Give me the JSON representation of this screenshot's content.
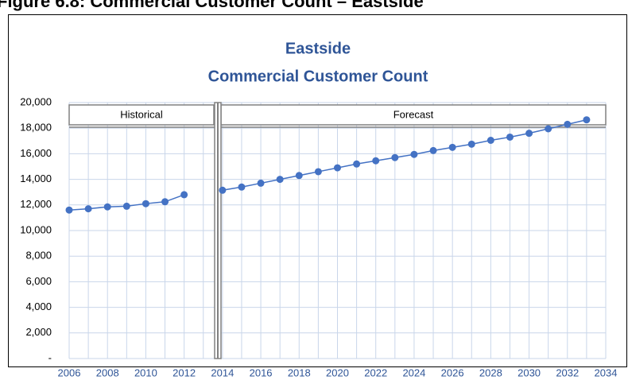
{
  "chart_data": {
    "type": "line",
    "figure_caption": "Figure 6.8:  Commercial Customer Count – Eastside",
    "title": "Eastside",
    "subtitle": "Commercial Customer Count",
    "regions": [
      "Historical",
      "Forecast"
    ],
    "x": [
      2006,
      2007,
      2008,
      2009,
      2010,
      2011,
      2012,
      2013,
      2014,
      2015,
      2016,
      2017,
      2018,
      2019,
      2020,
      2021,
      2022,
      2023,
      2024,
      2025,
      2026,
      2027,
      2028,
      2029,
      2030,
      2031,
      2032,
      2033
    ],
    "series": [
      {
        "color": "#4472c4",
        "values": [
          11600,
          11700,
          11850,
          11900,
          12100,
          12250,
          12800,
          null,
          13150,
          13400,
          13700,
          14000,
          14300,
          14600,
          14900,
          15200,
          15450,
          15700,
          15950,
          16250,
          16500,
          16750,
          17050,
          17300,
          17600,
          17950,
          18300,
          18650
        ]
      }
    ],
    "xlim": [
      2006,
      2034
    ],
    "xticks": [
      2006,
      2008,
      2010,
      2012,
      2014,
      2016,
      2018,
      2020,
      2022,
      2024,
      2026,
      2028,
      2030,
      2032,
      2034
    ],
    "ylim": [
      0,
      20000
    ],
    "yticks": [
      {
        "value": 0,
        "label": "-"
      },
      {
        "value": 2000,
        "label": "2,000"
      },
      {
        "value": 4000,
        "label": "4,000"
      },
      {
        "value": 6000,
        "label": "6,000"
      },
      {
        "value": 8000,
        "label": "8,000"
      },
      {
        "value": 10000,
        "label": "10,000"
      },
      {
        "value": 12000,
        "label": "12,000"
      },
      {
        "value": 14000,
        "label": "14,000"
      },
      {
        "value": 16000,
        "label": "16,000"
      },
      {
        "value": 18000,
        "label": "18,000"
      },
      {
        "value": 20000,
        "label": "20,000"
      }
    ],
    "grid": true
  }
}
